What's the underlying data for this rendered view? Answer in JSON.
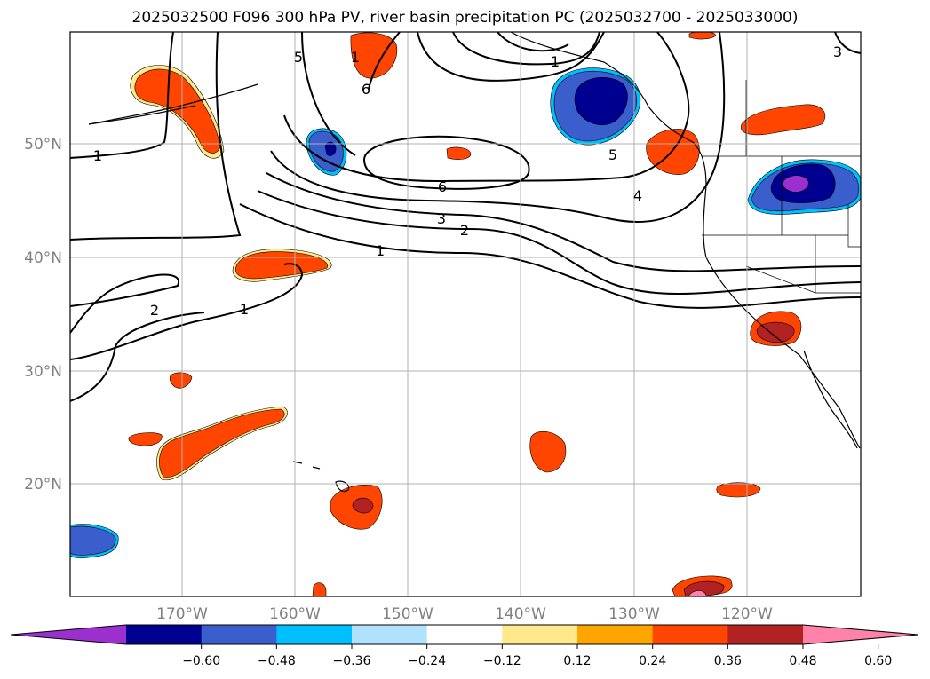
{
  "title": "2025032500 F096 300 hPa PV, river basin precipitation PC (2025032700 - 2025033000)",
  "lat_labels": [
    "20°N",
    "30°N",
    "40°N",
    "50°N"
  ],
  "lon_labels": [
    "170°W",
    "160°W",
    "150°W",
    "140°W",
    "130°W",
    "120°W"
  ],
  "colorbar": {
    "tick_labels": [
      "−0.60",
      "−0.48",
      "−0.36",
      "−0.24",
      "−0.12",
      "0.12",
      "0.24",
      "0.36",
      "0.48",
      "0.60"
    ],
    "colors": [
      "#9b30cf",
      "#000090",
      "#3a5fcd",
      "#00bfff",
      "#b0e2ff",
      "#ffffff",
      "#ffe98a",
      "#ffa500",
      "#ff4500",
      "#b22222",
      "#ff82ab"
    ]
  },
  "contour_labels": [
    "1",
    "1",
    "2",
    "1",
    "1",
    "2",
    "3",
    "6",
    "6",
    "5",
    "1",
    "5",
    "4",
    "3"
  ]
}
